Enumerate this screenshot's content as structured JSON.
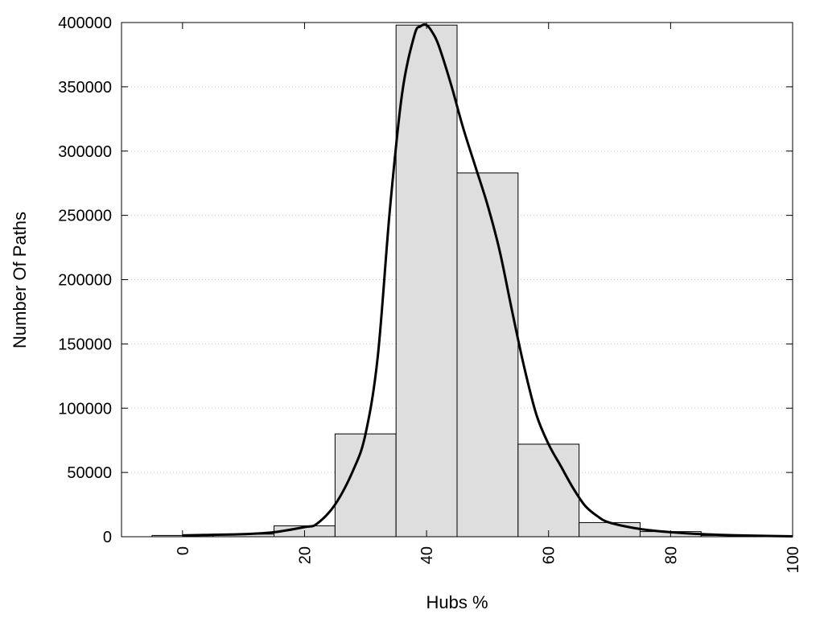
{
  "chart_data": {
    "type": "bar",
    "title": "",
    "xlabel": "Hubs %",
    "ylabel": "Number Of Paths",
    "xlim": [
      -10,
      100
    ],
    "ylim": [
      0,
      400000
    ],
    "x_ticks": [
      0,
      20,
      40,
      60,
      80,
      100
    ],
    "y_ticks": [
      0,
      50000,
      100000,
      150000,
      200000,
      250000,
      300000,
      350000,
      400000
    ],
    "grid": "horizontal-dotted",
    "legend": "none",
    "bin_width": 10,
    "bins": [
      {
        "center": 0,
        "value": 1000
      },
      {
        "center": 10,
        "value": 2000
      },
      {
        "center": 20,
        "value": 8500
      },
      {
        "center": 30,
        "value": 80000
      },
      {
        "center": 40,
        "value": 398000
      },
      {
        "center": 50,
        "value": 283000
      },
      {
        "center": 60,
        "value": 72000
      },
      {
        "center": 70,
        "value": 11000
      },
      {
        "center": 80,
        "value": 4000
      },
      {
        "center": 90,
        "value": 1000
      }
    ],
    "curve": {
      "x": [
        0,
        5,
        10,
        15,
        20,
        22,
        25,
        28,
        30,
        32,
        34,
        36,
        38,
        39,
        40,
        41,
        42,
        44,
        46,
        48,
        50,
        52,
        54,
        56,
        58,
        60,
        62,
        64,
        66,
        68,
        70,
        75,
        80,
        85,
        90,
        95,
        100
      ],
      "y": [
        1000,
        1500,
        2000,
        3500,
        7500,
        10000,
        25000,
        52000,
        80000,
        140000,
        255000,
        345000,
        390000,
        397000,
        398000,
        392000,
        382000,
        352000,
        318000,
        288000,
        258000,
        222000,
        176000,
        132000,
        95000,
        72000,
        55000,
        38000,
        24000,
        16000,
        11000,
        6000,
        3500,
        2000,
        1200,
        700,
        300
      ],
      "color": "#000000"
    },
    "bar_fill": "#dedede",
    "bar_stroke": "#000000"
  }
}
